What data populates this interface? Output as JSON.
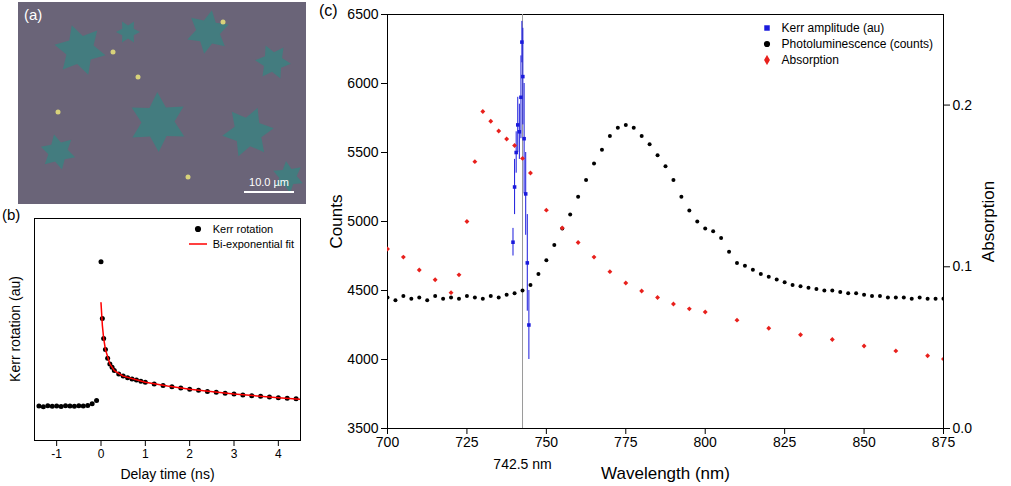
{
  "image": {
    "panel": "(a)",
    "scale_bar": "10.0 µm"
  },
  "chart_data": [
    {
      "panel": "(b)",
      "type": "scatter",
      "x_label": "Delay time (ns)",
      "y_label": "Kerr rotation (au)",
      "xlim": [
        -1.5,
        4.5
      ],
      "xticks": [
        -1,
        0,
        1,
        2,
        3,
        4
      ],
      "ylim": [
        0,
        1
      ],
      "tick_labels": "x",
      "legend": "top-right",
      "series": [
        {
          "name": "Kerr rotation",
          "type": "scatter",
          "color": "#000000",
          "marker": "circle",
          "x": [
            -1.4,
            -1.3,
            -1.2,
            -1.1,
            -1.0,
            -0.9,
            -0.8,
            -0.7,
            -0.6,
            -0.5,
            -0.4,
            -0.3,
            -0.2,
            -0.1,
            0,
            0.03,
            0.06,
            0.1,
            0.15,
            0.2,
            0.25,
            0.3,
            0.4,
            0.5,
            0.6,
            0.7,
            0.8,
            0.9,
            1,
            1.2,
            1.4,
            1.6,
            1.8,
            2.0,
            2.2,
            2.4,
            2.6,
            2.8,
            3.0,
            3.2,
            3.4,
            3.6,
            3.8,
            4.0,
            4.2,
            4.4
          ],
          "values": [
            0.155,
            0.152,
            0.156,
            0.154,
            0.155,
            0.153,
            0.156,
            0.155,
            0.154,
            0.156,
            0.155,
            0.158,
            0.165,
            0.18,
            0.805,
            0.55,
            0.46,
            0.41,
            0.37,
            0.345,
            0.33,
            0.315,
            0.3,
            0.29,
            0.283,
            0.277,
            0.272,
            0.267,
            0.262,
            0.255,
            0.248,
            0.242,
            0.236,
            0.231,
            0.226,
            0.221,
            0.217,
            0.213,
            0.209,
            0.205,
            0.202,
            0.199,
            0.196,
            0.193,
            0.19,
            0.188
          ]
        },
        {
          "name": "Bi-exponential fit",
          "type": "line",
          "color": "#ff0000",
          "line_style": "solid",
          "x": [
            0,
            0.03,
            0.06,
            0.1,
            0.2,
            0.3,
            0.5,
            1,
            1.5,
            2,
            3,
            4,
            4.5
          ],
          "values": [
            0.62,
            0.52,
            0.46,
            0.41,
            0.345,
            0.315,
            0.29,
            0.262,
            0.245,
            0.231,
            0.209,
            0.193,
            0.186
          ]
        }
      ]
    },
    {
      "panel": "(c)",
      "type": "scatter",
      "x_label": "Wavelength (nm)",
      "y_label": "Counts",
      "y2_label": "Absorption",
      "xlim": [
        700,
        875
      ],
      "xticks": [
        700,
        725,
        750,
        775,
        800,
        825,
        850,
        875
      ],
      "ylim": [
        3500,
        6500
      ],
      "yticks": [
        3500,
        4000,
        4500,
        5000,
        5500,
        6000,
        6500
      ],
      "y2lim": [
        0,
        0.256
      ],
      "y2ticks": [
        {
          "value": 0,
          "label": "0.0"
        },
        0.1,
        0.2
      ],
      "legend": "top-right",
      "annotations": [
        {
          "x": 742.5,
          "text": "742.5 nm"
        }
      ],
      "series": [
        {
          "name": "Kerr amplitude (au)",
          "type": "scatter",
          "color": "#1a1adc",
          "marker": "square",
          "x": [
            739.5,
            740,
            740.5,
            741,
            741.5,
            742,
            742.3,
            742.6,
            743,
            743.5,
            744,
            744.5
          ],
          "values": [
            4850,
            5250,
            5500,
            5700,
            5650,
            5900,
            6300,
            6050,
            5600,
            5200,
            4700,
            4250
          ],
          "errors": [
            100,
            200,
            150,
            200,
            200,
            300,
            150,
            350,
            400,
            300,
            350,
            250
          ]
        },
        {
          "name": "Photoluminescence (counts)",
          "type": "scatter",
          "color": "#000000",
          "marker": "circle",
          "x": [
            700,
            702.5,
            705,
            707.5,
            710,
            712.5,
            715,
            717.5,
            720,
            722.5,
            725,
            727.5,
            730,
            732.5,
            735,
            737.5,
            740,
            742.5,
            745,
            747.5,
            750,
            752.5,
            755,
            757.5,
            760,
            762.5,
            765,
            767.5,
            770,
            772.5,
            775,
            777.5,
            780,
            782.5,
            785,
            787.5,
            790,
            792.5,
            795,
            797.5,
            800,
            802.5,
            805,
            807.5,
            810,
            812.5,
            815,
            817.5,
            820,
            822.5,
            825,
            827.5,
            830,
            832.5,
            835,
            837.5,
            840,
            842.5,
            845,
            847.5,
            850,
            852.5,
            855,
            857.5,
            860,
            862.5,
            865,
            867.5,
            870,
            872.5,
            875
          ],
          "values": [
            4450,
            4430,
            4460,
            4440,
            4450,
            4430,
            4460,
            4440,
            4450,
            4440,
            4460,
            4450,
            4440,
            4460,
            4450,
            4470,
            4480,
            4500,
            4540,
            4620,
            4720,
            4830,
            4950,
            5050,
            5180,
            5300,
            5420,
            5520,
            5620,
            5680,
            5700,
            5680,
            5620,
            5560,
            5480,
            5400,
            5300,
            5180,
            5080,
            5000,
            4950,
            4930,
            4880,
            4780,
            4700,
            4680,
            4650,
            4620,
            4600,
            4580,
            4560,
            4540,
            4530,
            4520,
            4510,
            4500,
            4500,
            4490,
            4480,
            4480,
            4470,
            4460,
            4460,
            4450,
            4450,
            4450,
            4440,
            4450,
            4440,
            4440,
            4440
          ]
        },
        {
          "name": "Absorption",
          "type": "scatter",
          "color": "#e8201c",
          "marker": "diamond",
          "axis": "y2",
          "x": [
            700,
            705,
            710,
            715,
            720,
            722.5,
            725,
            727.5,
            730,
            732.5,
            735,
            737.5,
            740,
            742.5,
            745,
            750,
            755,
            760,
            765,
            770,
            775,
            780,
            785,
            790,
            795,
            800,
            810,
            820,
            830,
            840,
            850,
            860,
            870,
            875
          ],
          "values": [
            0.111,
            0.106,
            0.098,
            0.092,
            0.084,
            0.095,
            0.128,
            0.165,
            0.196,
            0.19,
            0.184,
            0.179,
            0.175,
            0.167,
            0.158,
            0.135,
            0.124,
            0.115,
            0.106,
            0.097,
            0.09,
            0.085,
            0.081,
            0.077,
            0.074,
            0.072,
            0.067,
            0.062,
            0.058,
            0.055,
            0.051,
            0.048,
            0.045,
            0.043
          ]
        }
      ]
    }
  ]
}
